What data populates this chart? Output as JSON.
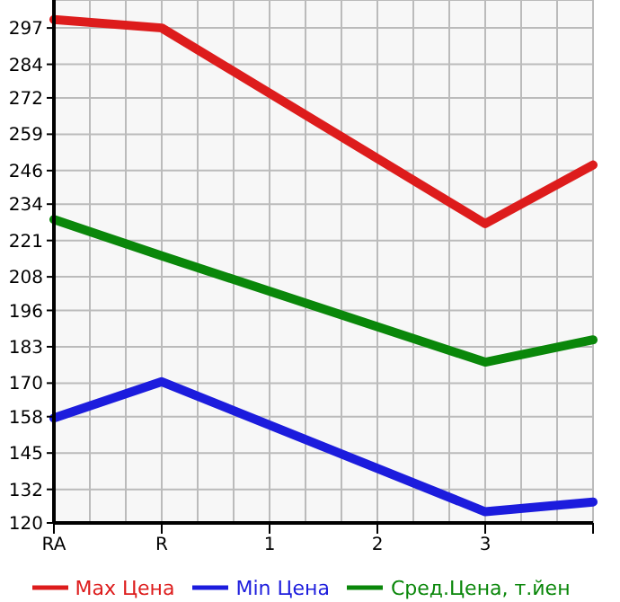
{
  "chart_data": {
    "type": "line",
    "categories": [
      "RA",
      "R",
      "1",
      "2",
      "3",
      null
    ],
    "series": [
      {
        "name": "Max Цена",
        "color": "#dd1c1c",
        "values": [
          300,
          297,
          null,
          null,
          227,
          248
        ]
      },
      {
        "name": "Min Цена",
        "color": "#1c1cdd",
        "values": [
          157.5,
          170.5,
          null,
          null,
          124,
          127.5
        ]
      },
      {
        "name": "Сред.Цена, т.йен",
        "color": "#0a870a",
        "values": [
          228.5,
          215.5,
          null,
          null,
          177.5,
          185.5
        ]
      }
    ],
    "ylim": [
      120,
      307
    ],
    "yticks": [
      120,
      132,
      145,
      158,
      170,
      183,
      196,
      208,
      221,
      234,
      246,
      259,
      272,
      284,
      297
    ],
    "grid": true,
    "legend": "bottom",
    "marker": "none",
    "line_style": "solid"
  }
}
